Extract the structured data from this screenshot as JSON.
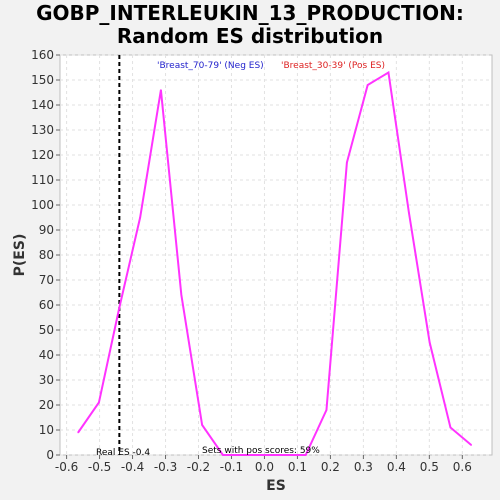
{
  "chart_data": {
    "type": "line",
    "title_line1": "GOBP_INTERLEUKIN_13_PRODUCTION:",
    "title_line2": "Random ES distribution",
    "xlabel": "ES",
    "ylabel": "P(ES)",
    "xlim": [
      -0.62,
      0.69
    ],
    "ylim": [
      0,
      160
    ],
    "xticks": [
      -0.6,
      -0.5,
      -0.4,
      -0.3,
      -0.2,
      -0.1,
      0.0,
      0.1,
      0.2,
      0.3,
      0.4,
      0.5,
      0.6
    ],
    "xtick_labels": [
      "-0.6",
      "-0.5",
      "-0.4",
      "-0.3",
      "-0.2",
      "-0.1",
      "0.0",
      "0.1",
      "0.2",
      "0.3",
      "0.4",
      "0.5",
      "0.6"
    ],
    "yticks": [
      0,
      10,
      20,
      30,
      40,
      50,
      60,
      70,
      80,
      90,
      100,
      110,
      120,
      130,
      140,
      150,
      160
    ],
    "grid": true,
    "series": [
      {
        "color": "#ff33ff",
        "x": [
          -0.565,
          -0.502,
          -0.44,
          -0.377,
          -0.314,
          -0.252,
          -0.189,
          -0.126,
          -0.064,
          0.0,
          0.062,
          0.125,
          0.188,
          0.25,
          0.313,
          0.376,
          0.438,
          0.501,
          0.564,
          0.627
        ],
        "y": [
          9,
          21,
          59,
          95,
          146,
          64,
          12,
          0,
          0,
          0,
          0,
          0,
          18,
          117,
          148,
          153,
          97,
          45,
          11,
          4
        ]
      }
    ],
    "real_es": -0.44,
    "real_es_color": "#000000",
    "annotations": {
      "neg_label": "'Breast_70-79' (Neg ES)",
      "neg_color": "#2222cc",
      "pos_label": "'Breast_30-39' (Pos ES)",
      "pos_color": "#dd2222",
      "real_es_label": "Real ES -0.4",
      "pos_scores_label": "Sets with pos scores: 59%"
    }
  }
}
